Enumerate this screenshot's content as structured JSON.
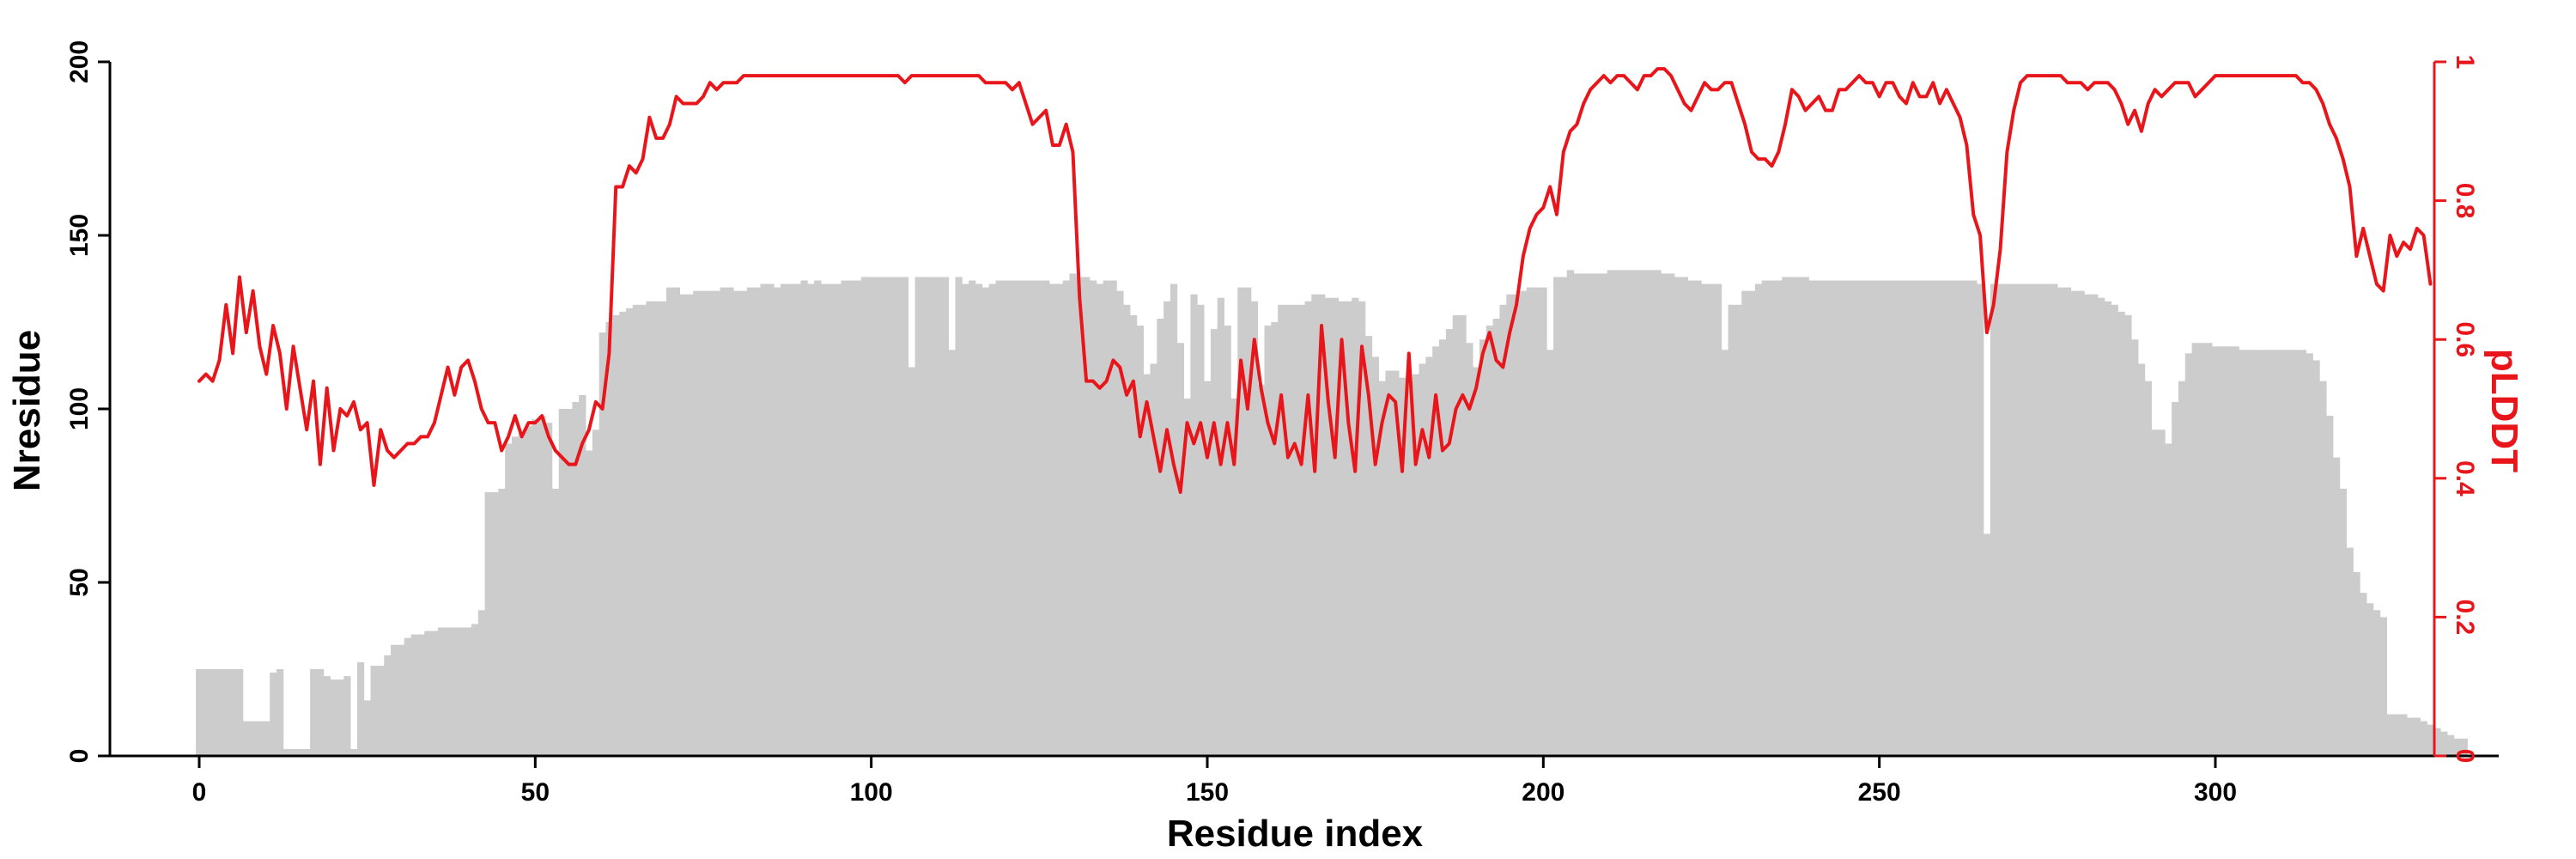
{
  "chart_data": {
    "type": "bar+line",
    "title": "",
    "xlabel": "Residue index",
    "ylabel_left": "Nresidue",
    "ylabel_right": "pLDDT",
    "xlim": [
      -13,
      342
    ],
    "ylim_left": [
      0,
      200
    ],
    "ylim_right": [
      0,
      1
    ],
    "xticks": [
      0,
      50,
      100,
      150,
      200,
      250,
      300
    ],
    "yticks_left": [
      0,
      50,
      100,
      150,
      200
    ],
    "yticks_right": [
      0,
      0.2,
      0.4,
      0.6,
      0.8,
      1
    ],
    "ytick_labels_right": [
      "0",
      "0.2",
      "0.4",
      "0.6",
      "0.8",
      "1"
    ],
    "grid": false,
    "legend": "none",
    "colors": {
      "bars": "#cccccc",
      "line": "#e8161b",
      "axis_left": "#000000",
      "axis_right": "#e8161b"
    },
    "bars": {
      "name": "Nresidue",
      "x_start": 0,
      "values": [
        25,
        25,
        25,
        25,
        25,
        25,
        25,
        10,
        10,
        10,
        10,
        24,
        25,
        2,
        2,
        2,
        2,
        25,
        25,
        23,
        22,
        22,
        23,
        2,
        27,
        16,
        26,
        26,
        29,
        32,
        32,
        34,
        35,
        35,
        36,
        36,
        37,
        37,
        37,
        37,
        37,
        38,
        42,
        76,
        76,
        77,
        90,
        92,
        93,
        95,
        97,
        98,
        96,
        77,
        100,
        100,
        102,
        104,
        88,
        94,
        122,
        125,
        127,
        128,
        129,
        130,
        130,
        131,
        131,
        131,
        135,
        135,
        133,
        133,
        134,
        134,
        134,
        134,
        135,
        135,
        134,
        134,
        135,
        135,
        136,
        136,
        135,
        136,
        136,
        136,
        137,
        136,
        137,
        136,
        136,
        136,
        137,
        137,
        137,
        138,
        138,
        138,
        138,
        138,
        138,
        138,
        112,
        138,
        138,
        138,
        138,
        138,
        117,
        138,
        136,
        137,
        136,
        135,
        136,
        137,
        137,
        137,
        137,
        137,
        137,
        137,
        137,
        136,
        136,
        137,
        139,
        138,
        138,
        137,
        136,
        137,
        137,
        134,
        130,
        127,
        124,
        110,
        113,
        126,
        131,
        136,
        119,
        103,
        133,
        130,
        108,
        123,
        132,
        124,
        103,
        135,
        135,
        131,
        107,
        124,
        125,
        130,
        130,
        130,
        130,
        131,
        133,
        133,
        132,
        132,
        131,
        131,
        132,
        131,
        121,
        115,
        108,
        111,
        111,
        109,
        107,
        110,
        113,
        115,
        118,
        120,
        123,
        127,
        127,
        119,
        112,
        120,
        124,
        126,
        130,
        133,
        133,
        134,
        135,
        135,
        135,
        117,
        138,
        138,
        140,
        139,
        139,
        139,
        139,
        139,
        140,
        140,
        140,
        140,
        140,
        140,
        140,
        140,
        139,
        139,
        138,
        138,
        137,
        137,
        136,
        136,
        136,
        117,
        130,
        130,
        134,
        134,
        136,
        137,
        137,
        137,
        138,
        138,
        138,
        138,
        137,
        137,
        137,
        137,
        137,
        137,
        137,
        137,
        137,
        137,
        137,
        137,
        137,
        137,
        137,
        137,
        137,
        137,
        137,
        137,
        137,
        137,
        137,
        137,
        137,
        136,
        64,
        136,
        136,
        136,
        136,
        136,
        136,
        136,
        136,
        136,
        136,
        135,
        135,
        134,
        134,
        133,
        133,
        132,
        131,
        130,
        128,
        127,
        120,
        113,
        108,
        94,
        94,
        90,
        102,
        108,
        116,
        119,
        119,
        119,
        118,
        118,
        118,
        118,
        117,
        117,
        117,
        117,
        117,
        117,
        117,
        117,
        117,
        117,
        116,
        114,
        108,
        98,
        86,
        77,
        60,
        53,
        47,
        44,
        42,
        40,
        12,
        12,
        12,
        11,
        11,
        10,
        9,
        8,
        7,
        6,
        5,
        5
      ]
    },
    "line": {
      "name": "pLDDT",
      "x_start": 0,
      "values": [
        0.54,
        0.55,
        0.54,
        0.57,
        0.65,
        0.58,
        0.69,
        0.61,
        0.67,
        0.59,
        0.55,
        0.62,
        0.58,
        0.5,
        0.59,
        0.53,
        0.47,
        0.54,
        0.42,
        0.53,
        0.44,
        0.5,
        0.49,
        0.51,
        0.47,
        0.48,
        0.39,
        0.47,
        0.44,
        0.43,
        0.44,
        0.45,
        0.45,
        0.46,
        0.46,
        0.48,
        0.52,
        0.56,
        0.52,
        0.56,
        0.57,
        0.54,
        0.5,
        0.48,
        0.48,
        0.44,
        0.46,
        0.49,
        0.46,
        0.48,
        0.48,
        0.49,
        0.46,
        0.44,
        0.43,
        0.42,
        0.42,
        0.45,
        0.47,
        0.51,
        0.5,
        0.58,
        0.82,
        0.82,
        0.85,
        0.84,
        0.86,
        0.92,
        0.89,
        0.89,
        0.91,
        0.95,
        0.94,
        0.94,
        0.94,
        0.95,
        0.97,
        0.96,
        0.97,
        0.97,
        0.97,
        0.98,
        0.98,
        0.98,
        0.98,
        0.98,
        0.98,
        0.98,
        0.98,
        0.98,
        0.98,
        0.98,
        0.98,
        0.98,
        0.98,
        0.98,
        0.98,
        0.98,
        0.98,
        0.98,
        0.98,
        0.98,
        0.98,
        0.98,
        0.98,
        0.97,
        0.98,
        0.98,
        0.98,
        0.98,
        0.98,
        0.98,
        0.98,
        0.98,
        0.98,
        0.98,
        0.98,
        0.97,
        0.97,
        0.97,
        0.97,
        0.96,
        0.97,
        0.94,
        0.91,
        0.92,
        0.93,
        0.88,
        0.88,
        0.91,
        0.87,
        0.66,
        0.54,
        0.54,
        0.53,
        0.54,
        0.57,
        0.56,
        0.52,
        0.54,
        0.46,
        0.51,
        0.46,
        0.41,
        0.47,
        0.42,
        0.38,
        0.48,
        0.45,
        0.48,
        0.43,
        0.48,
        0.42,
        0.48,
        0.42,
        0.57,
        0.5,
        0.6,
        0.53,
        0.48,
        0.45,
        0.52,
        0.43,
        0.45,
        0.42,
        0.52,
        0.41,
        0.62,
        0.51,
        0.43,
        0.6,
        0.48,
        0.41,
        0.59,
        0.52,
        0.42,
        0.48,
        0.52,
        0.51,
        0.41,
        0.58,
        0.42,
        0.47,
        0.43,
        0.52,
        0.44,
        0.45,
        0.5,
        0.52,
        0.5,
        0.53,
        0.58,
        0.61,
        0.57,
        0.56,
        0.61,
        0.65,
        0.72,
        0.76,
        0.78,
        0.79,
        0.82,
        0.78,
        0.87,
        0.9,
        0.91,
        0.94,
        0.96,
        0.97,
        0.98,
        0.97,
        0.98,
        0.98,
        0.97,
        0.96,
        0.98,
        0.98,
        0.99,
        0.99,
        0.98,
        0.96,
        0.94,
        0.93,
        0.95,
        0.97,
        0.96,
        0.96,
        0.97,
        0.97,
        0.94,
        0.91,
        0.87,
        0.86,
        0.86,
        0.85,
        0.87,
        0.91,
        0.96,
        0.95,
        0.93,
        0.94,
        0.95,
        0.93,
        0.93,
        0.96,
        0.96,
        0.97,
        0.98,
        0.97,
        0.97,
        0.95,
        0.97,
        0.97,
        0.95,
        0.94,
        0.97,
        0.95,
        0.95,
        0.97,
        0.94,
        0.96,
        0.94,
        0.92,
        0.88,
        0.78,
        0.75,
        0.61,
        0.65,
        0.73,
        0.87,
        0.93,
        0.97,
        0.98,
        0.98,
        0.98,
        0.98,
        0.98,
        0.98,
        0.97,
        0.97,
        0.97,
        0.96,
        0.97,
        0.97,
        0.97,
        0.96,
        0.94,
        0.91,
        0.93,
        0.9,
        0.94,
        0.96,
        0.95,
        0.96,
        0.97,
        0.97,
        0.97,
        0.95,
        0.96,
        0.97,
        0.98,
        0.98,
        0.98,
        0.98,
        0.98,
        0.98,
        0.98,
        0.98,
        0.98,
        0.98,
        0.98,
        0.98,
        0.98,
        0.97,
        0.97,
        0.96,
        0.94,
        0.91,
        0.89,
        0.86,
        0.82,
        0.72,
        0.76,
        0.72,
        0.68,
        0.67,
        0.75,
        0.72,
        0.74,
        0.73,
        0.76,
        0.75,
        0.68
      ]
    }
  }
}
